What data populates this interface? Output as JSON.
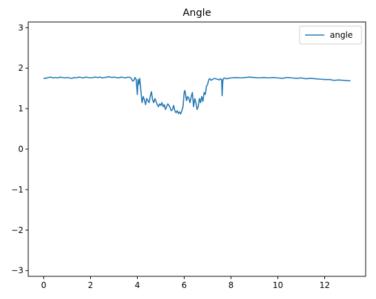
{
  "chart_data": {
    "type": "line",
    "title": "Angle",
    "xlabel": "",
    "ylabel": "",
    "xlim": [
      -0.66,
      13.75
    ],
    "ylim": [
      -3.1416,
      3.1416
    ],
    "xticks": [
      0,
      2,
      4,
      6,
      8,
      10,
      12
    ],
    "xtick_labels": [
      "0",
      "2",
      "4",
      "6",
      "8",
      "10",
      "12"
    ],
    "yticks": [
      -3,
      -2,
      -1,
      0,
      1,
      2,
      3
    ],
    "ytick_labels": [
      "−3",
      "−2",
      "−1",
      "0",
      "1",
      "2",
      "3"
    ],
    "grid": false,
    "legend": {
      "location": "top-right",
      "entries": [
        "angle"
      ]
    },
    "series": [
      {
        "name": "angle",
        "color": "#1f77b4",
        "x": [
          0.0,
          0.05,
          0.1,
          0.2,
          0.3,
          0.4,
          0.5,
          0.6,
          0.7,
          0.8,
          0.9,
          1.0,
          1.1,
          1.2,
          1.3,
          1.4,
          1.5,
          1.6,
          1.7,
          1.8,
          1.9,
          2.0,
          2.1,
          2.2,
          2.3,
          2.4,
          2.5,
          2.6,
          2.7,
          2.8,
          2.9,
          3.0,
          3.1,
          3.2,
          3.3,
          3.4,
          3.5,
          3.6,
          3.7,
          3.75,
          3.8,
          3.85,
          3.9,
          3.95,
          4.0,
          4.03,
          4.06,
          4.1,
          4.15,
          4.2,
          4.25,
          4.3,
          4.35,
          4.4,
          4.45,
          4.5,
          4.55,
          4.6,
          4.65,
          4.7,
          4.75,
          4.8,
          4.85,
          4.9,
          4.95,
          5.0,
          5.05,
          5.1,
          5.15,
          5.2,
          5.25,
          5.3,
          5.35,
          5.4,
          5.45,
          5.5,
          5.55,
          5.6,
          5.65,
          5.7,
          5.75,
          5.8,
          5.85,
          5.9,
          5.95,
          6.0,
          6.03,
          6.06,
          6.1,
          6.15,
          6.2,
          6.25,
          6.3,
          6.35,
          6.4,
          6.45,
          6.5,
          6.55,
          6.6,
          6.65,
          6.7,
          6.75,
          6.8,
          6.85,
          6.9,
          6.95,
          7.0,
          7.05,
          7.1,
          7.15,
          7.2,
          7.3,
          7.4,
          7.5,
          7.55,
          7.6,
          7.62,
          7.65,
          7.7,
          7.8,
          7.9,
          8.0,
          8.2,
          8.4,
          8.6,
          8.8,
          9.0,
          9.2,
          9.4,
          9.6,
          9.8,
          10.0,
          10.2,
          10.4,
          10.6,
          10.8,
          11.0,
          11.2,
          11.4,
          11.6,
          11.8,
          12.0,
          12.2,
          12.4,
          12.6,
          12.8,
          13.0,
          13.1
        ],
        "y": [
          1.74,
          1.76,
          1.75,
          1.77,
          1.78,
          1.76,
          1.77,
          1.76,
          1.78,
          1.77,
          1.76,
          1.77,
          1.76,
          1.75,
          1.77,
          1.76,
          1.78,
          1.77,
          1.76,
          1.78,
          1.77,
          1.76,
          1.77,
          1.78,
          1.77,
          1.78,
          1.76,
          1.77,
          1.78,
          1.79,
          1.77,
          1.78,
          1.77,
          1.76,
          1.78,
          1.77,
          1.76,
          1.78,
          1.77,
          1.74,
          1.68,
          1.7,
          1.77,
          1.72,
          1.35,
          1.72,
          1.6,
          1.75,
          1.45,
          1.15,
          1.3,
          1.22,
          1.1,
          1.25,
          1.2,
          1.15,
          1.3,
          1.42,
          1.22,
          1.15,
          1.25,
          1.18,
          1.1,
          1.05,
          1.12,
          1.08,
          1.15,
          1.05,
          1.1,
          0.98,
          1.05,
          1.12,
          1.08,
          1.02,
          0.95,
          0.98,
          1.08,
          0.95,
          0.9,
          0.95,
          0.88,
          0.92,
          0.87,
          0.95,
          1.05,
          1.4,
          1.45,
          1.35,
          1.2,
          1.3,
          1.25,
          1.15,
          1.3,
          1.4,
          1.05,
          1.25,
          1.15,
          0.98,
          1.05,
          1.25,
          1.15,
          1.3,
          1.18,
          1.4,
          1.35,
          1.55,
          1.6,
          1.72,
          1.74,
          1.7,
          1.72,
          1.75,
          1.73,
          1.71,
          1.74,
          1.72,
          1.32,
          1.7,
          1.76,
          1.74,
          1.75,
          1.76,
          1.77,
          1.76,
          1.77,
          1.78,
          1.77,
          1.76,
          1.77,
          1.76,
          1.77,
          1.76,
          1.75,
          1.77,
          1.76,
          1.75,
          1.76,
          1.74,
          1.75,
          1.74,
          1.73,
          1.72,
          1.72,
          1.7,
          1.71,
          1.7,
          1.69,
          1.69
        ]
      }
    ]
  }
}
